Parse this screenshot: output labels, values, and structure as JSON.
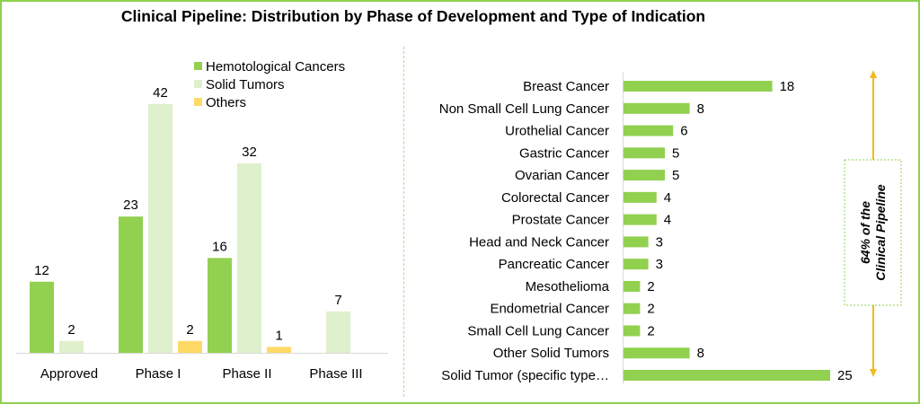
{
  "title": "Clinical Pipeline: Distribution by Phase of Development and Type of Indication",
  "colors": {
    "hemato": "#92d050",
    "solid": "#dff0cc",
    "others": "#ffd966",
    "hbar": "#92d050",
    "frame": "#8fd14f",
    "arrow": "#f2b91d",
    "callout_border": "#8fd14f"
  },
  "chart_data": [
    {
      "type": "bar",
      "title": "",
      "categories": [
        "Approved",
        "Phase I",
        "Phase II",
        "Phase III"
      ],
      "series": [
        {
          "name": "Hemotological Cancers",
          "values": [
            12,
            23,
            16,
            null
          ]
        },
        {
          "name": "Solid Tumors",
          "values": [
            2,
            42,
            32,
            7
          ]
        },
        {
          "name": "Others",
          "values": [
            null,
            2,
            1,
            null
          ]
        }
      ],
      "ylim": [
        0,
        45
      ],
      "legend_position": "top-right",
      "grid": false
    },
    {
      "type": "bar",
      "orientation": "horizontal",
      "categories": [
        "Breast Cancer",
        "Non Small Cell Lung Cancer",
        "Urothelial Cancer",
        "Gastric Cancer",
        "Ovarian Cancer",
        "Colorectal Cancer",
        "Prostate Cancer",
        "Head and Neck Cancer",
        "Pancreatic Cancer",
        "Mesothelioma",
        "Endometrial Cancer",
        "Small Cell Lung Cancer",
        "Other Solid Tumors",
        "Solid Tumor (specific type…"
      ],
      "values": [
        18,
        8,
        6,
        5,
        5,
        4,
        4,
        3,
        3,
        2,
        2,
        2,
        8,
        25
      ],
      "xlim": [
        0,
        25
      ],
      "grid": false,
      "annotation": "64% of the Clinical Pipeline"
    }
  ]
}
